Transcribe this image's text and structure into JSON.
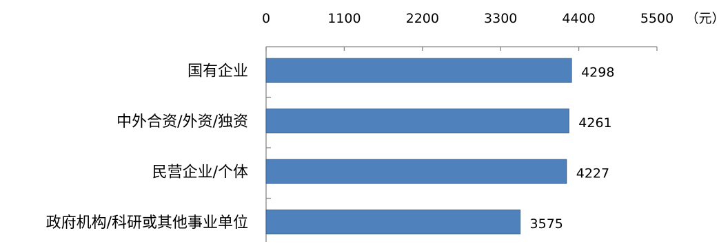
{
  "chart_data": {
    "type": "bar",
    "orientation": "horizontal",
    "categories": [
      "国有企业",
      "中外合资/外资/独资",
      "民营企业/个体",
      "政府机构/科研或其他事业单位"
    ],
    "values": [
      4298,
      4261,
      4227,
      3575
    ],
    "value_labels": [
      "4298",
      "4261",
      "4227",
      "3575"
    ],
    "xaxis": {
      "position": "top",
      "range": [
        0,
        5500
      ],
      "ticks": [
        0,
        1100,
        2200,
        3300,
        4400,
        5500
      ],
      "tick_labels": [
        "0",
        "1100",
        "2200",
        "3300",
        "4400",
        "5500"
      ],
      "unit": "（元）"
    },
    "grid": false,
    "legend": "none",
    "colors": {
      "bar": "#4f81bd",
      "bar_edge": "#385d8a",
      "axis": "#868686"
    }
  }
}
